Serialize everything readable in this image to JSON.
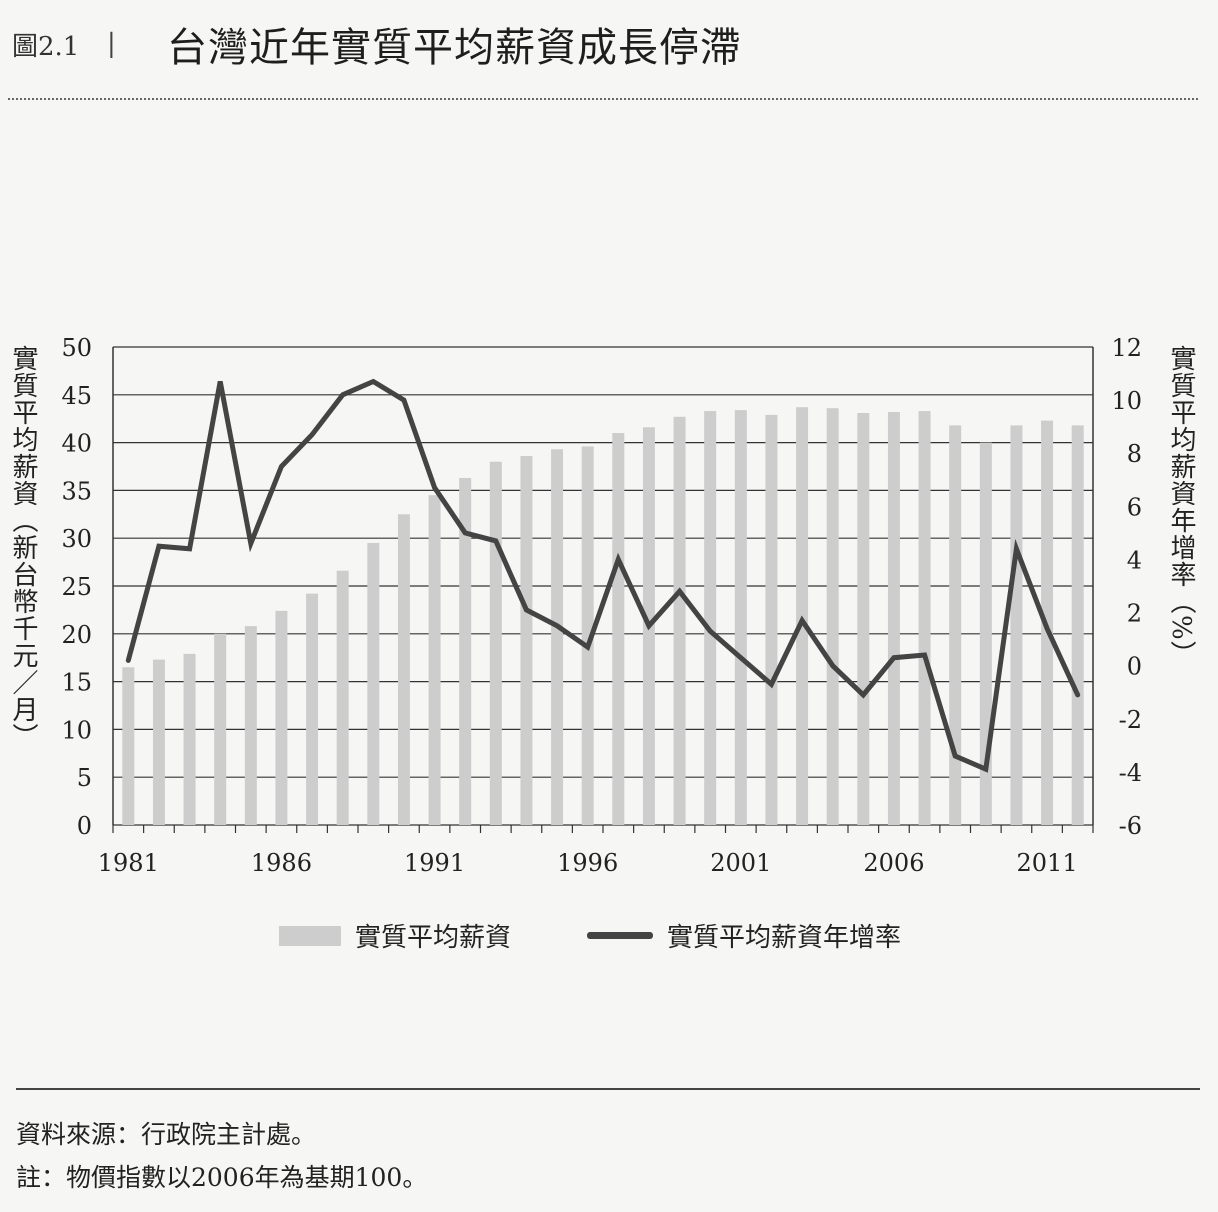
{
  "figure": {
    "label": "圖2.1",
    "separator": "|",
    "title": "台灣近年實質平均薪資成長停滯"
  },
  "axes": {
    "left_label": "實質平均薪資（新台幣千元／月）",
    "right_label": "實質平均薪資年增率（%）"
  },
  "legend": {
    "bar_label": "實質平均薪資",
    "line_label": "實質平均薪資年增率"
  },
  "notes": {
    "source": "資料來源：行政院主計處。",
    "note": "註：物價指數以2006年為基期100。"
  },
  "colors": {
    "bar": "#cdcdcd",
    "line": "#444444",
    "grid": "#333333"
  },
  "chart_data": {
    "type": "bar",
    "x": [
      1981,
      1982,
      1983,
      1984,
      1985,
      1986,
      1987,
      1988,
      1989,
      1990,
      1991,
      1992,
      1993,
      1994,
      1995,
      1996,
      1997,
      1998,
      1999,
      2000,
      2001,
      2002,
      2003,
      2004,
      2005,
      2006,
      2007,
      2008,
      2009,
      2010,
      2011,
      2012
    ],
    "xticks": [
      "1981",
      "1986",
      "1991",
      "1996",
      "2001",
      "2006",
      "2011"
    ],
    "yticks_left": [
      "0",
      "5",
      "10",
      "15",
      "20",
      "25",
      "30",
      "35",
      "40",
      "45",
      "50"
    ],
    "yticks_right": [
      "-6",
      "-4",
      "-2",
      "0",
      "2",
      "4",
      "6",
      "8",
      "10",
      "12"
    ],
    "ylim_left": [
      0,
      50
    ],
    "ylim_right": [
      -6,
      12
    ],
    "grid": true,
    "legend_position": "bottom",
    "series": [
      {
        "name": "實質平均薪資",
        "type": "bar",
        "axis": "left",
        "values": [
          16.5,
          17.3,
          17.9,
          20,
          20.8,
          22.4,
          24.2,
          26.6,
          29.5,
          32.5,
          34.5,
          36.3,
          38,
          38.6,
          39.3,
          39.6,
          41,
          41.6,
          42.7,
          43.3,
          43.4,
          42.9,
          43.7,
          43.6,
          43.1,
          43.2,
          43.3,
          41.8,
          40,
          41.8,
          42.3,
          41.8
        ]
      },
      {
        "name": "實質平均薪資年增率",
        "type": "line",
        "axis": "right",
        "values": [
          0.2,
          4.5,
          4.4,
          10.7,
          4.6,
          7.5,
          8.7,
          10.2,
          10.7,
          10,
          6.7,
          5,
          4.7,
          2.1,
          1.5,
          0.7,
          4,
          1.5,
          2.8,
          1.3,
          0.3,
          -0.7,
          1.7,
          0,
          -1.1,
          0.3,
          0.4,
          -3.4,
          -3.9,
          4.4,
          1.4,
          -1.1
        ]
      }
    ]
  }
}
